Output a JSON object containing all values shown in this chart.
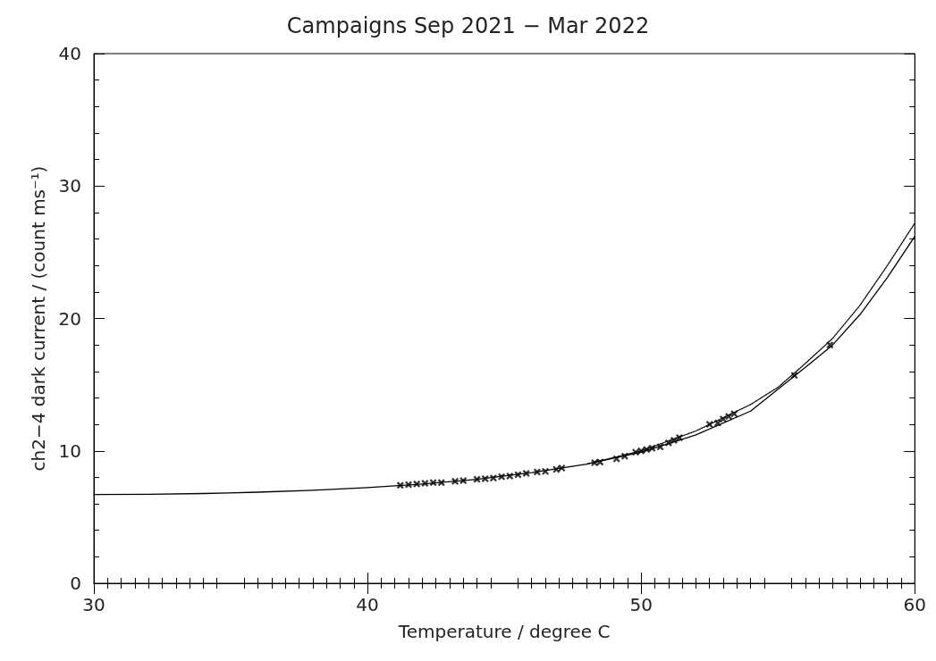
{
  "chart_data": {
    "type": "scatter",
    "title": "Campaigns Sep 2021 − Mar 2022",
    "xlabel": "Temperature / degree C",
    "ylabel": "ch2−4 dark current / (count ms⁻¹)",
    "xlim": [
      30,
      60
    ],
    "xticks": [
      30,
      40,
      50,
      60
    ],
    "ylim": [
      0,
      40
    ],
    "yticks": [
      0,
      10,
      20,
      30,
      40
    ],
    "grid": false,
    "marker": "cross",
    "series": [
      {
        "color": "#000000",
        "x": [
          41.2,
          41.5,
          41.8,
          42.1,
          42.4,
          42.7,
          43.2,
          43.5,
          44.0,
          44.3,
          44.6,
          44.9,
          45.2,
          45.5,
          45.8,
          46.2,
          46.5,
          46.9,
          47.1,
          48.3,
          48.5,
          49.1,
          49.4,
          49.8,
          50.0,
          50.2,
          50.4,
          50.7,
          51.0,
          51.2,
          51.4,
          52.5,
          52.8,
          53.0,
          53.2,
          53.4,
          55.6,
          56.9
        ],
        "values": [
          7.4,
          7.45,
          7.5,
          7.55,
          7.6,
          7.6,
          7.7,
          7.75,
          7.85,
          7.9,
          7.95,
          8.05,
          8.1,
          8.2,
          8.3,
          8.4,
          8.45,
          8.6,
          8.7,
          9.1,
          9.15,
          9.4,
          9.6,
          9.9,
          10.0,
          10.1,
          10.2,
          10.3,
          10.6,
          10.8,
          11.0,
          12.0,
          12.1,
          12.4,
          12.6,
          12.8,
          15.7,
          18.0
        ]
      },
      {
        "type": "line",
        "line_style": "solid",
        "color": "#000000",
        "marker": "none",
        "x": [
          30,
          32,
          34,
          36,
          38,
          40,
          42,
          44,
          46,
          48,
          50,
          52,
          54,
          56,
          57,
          58,
          59,
          60
        ],
        "values": [
          6.7,
          6.72,
          6.78,
          6.88,
          7.02,
          7.22,
          7.5,
          7.85,
          8.35,
          9.0,
          9.9,
          11.2,
          13.0,
          16.3,
          18.0,
          20.3,
          23.1,
          26.2
        ]
      },
      {
        "type": "line",
        "line_style": "dotted",
        "color": "#000000",
        "marker": "none",
        "x": [
          48,
          50,
          52,
          54,
          55,
          56,
          57,
          58,
          59,
          60
        ],
        "values": [
          9.0,
          10.0,
          11.5,
          13.5,
          14.8,
          16.6,
          18.5,
          21.0,
          24.0,
          27.2
        ]
      }
    ]
  }
}
